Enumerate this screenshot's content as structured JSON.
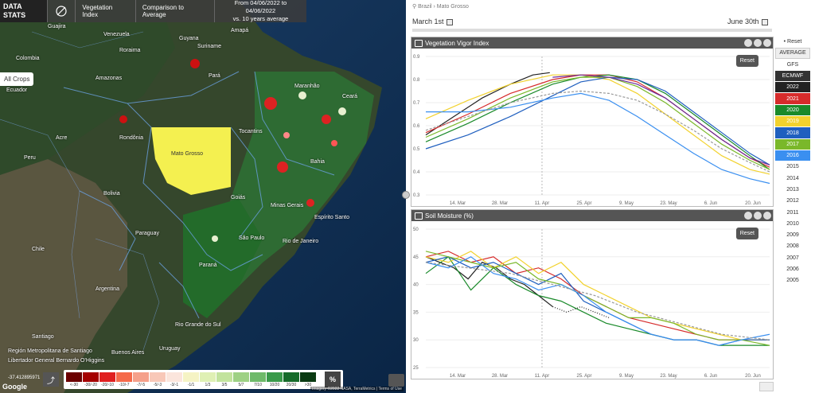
{
  "map": {
    "logo_line1": "DATA",
    "logo_line2": "STATS",
    "layer_button": "Vegetation Index",
    "comparison_button": "Comparison to Average",
    "date_range_line1": "From 04/06/2022 to 04/06/2022",
    "date_range_line2": "vs. 10 years average",
    "crop_selector": "All Crops",
    "labels": [
      {
        "text": "Guajira"
      },
      {
        "text": "Venezuela"
      },
      {
        "text": "Guyana"
      },
      {
        "text": "Suriname"
      },
      {
        "text": "Amapá"
      },
      {
        "text": "Colombia"
      },
      {
        "text": "Roraima"
      },
      {
        "text": "Amazonas"
      },
      {
        "text": "Pará"
      },
      {
        "text": "Ecuador"
      },
      {
        "text": "Maranhão"
      },
      {
        "text": "Ceará"
      },
      {
        "text": "Acre"
      },
      {
        "text": "Rondônia"
      },
      {
        "text": "Tocantins"
      },
      {
        "text": "Peru"
      },
      {
        "text": "Mato Grosso"
      },
      {
        "text": "Bahia"
      },
      {
        "text": "Bolivia"
      },
      {
        "text": "Goiás"
      },
      {
        "text": "Minas Gerais"
      },
      {
        "text": "Espírito Santo"
      },
      {
        "text": "Paraguay"
      },
      {
        "text": "São Paulo"
      },
      {
        "text": "Rio de Janeiro"
      },
      {
        "text": "Chile"
      },
      {
        "text": "Paraná"
      },
      {
        "text": "Argentina"
      },
      {
        "text": "Rio Grande do Sul"
      },
      {
        "text": "Uruguay"
      },
      {
        "text": "Santiago"
      },
      {
        "text": "Buenos Aires"
      },
      {
        "text": "Región Metropolitana de Santiago"
      },
      {
        "text": "Libertador General Bernardo O'Higgins"
      }
    ],
    "legend": [
      {
        "label": "<-30",
        "color": "#6b0000"
      },
      {
        "label": "-30/-20",
        "color": "#a50000"
      },
      {
        "label": "-20/-10",
        "color": "#e02020"
      },
      {
        "label": "-10/-7",
        "color": "#f56a4a"
      },
      {
        "label": "-7/-5",
        "color": "#f5a08a"
      },
      {
        "label": "-5/-3",
        "color": "#f8c8b8"
      },
      {
        "label": "-3/-1",
        "color": "#fbe5dc"
      },
      {
        "label": "-1/1",
        "color": "#f5f3c4"
      },
      {
        "label": "1/3",
        "color": "#dff0b4"
      },
      {
        "label": "3/5",
        "color": "#c2e39d"
      },
      {
        "label": "5/7",
        "color": "#9ed184"
      },
      {
        "label": "7/10",
        "color": "#6fba6a"
      },
      {
        "label": "10/20",
        "color": "#3a9a4a"
      },
      {
        "label": "20/30",
        "color": "#166b2a"
      },
      {
        "label": ">30",
        "color": "#0a3a12"
      }
    ],
    "legend_unit": "%",
    "coordinates": "-37.412895971",
    "google_logo": "Google",
    "attribution": "Imagery ©2022 NASA, TerraMetrics  |  Terms of Use"
  },
  "right": {
    "breadcrumb": "Brazil › Mato Grosso",
    "date_start": "March 1st",
    "date_end": "June 30th"
  },
  "chart_vigor": {
    "title": "Vegetation Vigor Index",
    "reset": "Reset"
  },
  "chart_soil": {
    "title": "Soil Moisture (%)",
    "reset": "Reset"
  },
  "years": {
    "reset": "• Reset",
    "items": [
      {
        "label": "AVERAGE",
        "kind": "avg"
      },
      {
        "label": "GFS",
        "kind": "plain"
      },
      {
        "label": "ECMWF",
        "kind": "active",
        "color": "#333333"
      },
      {
        "label": "2022",
        "kind": "active",
        "color": "#222222"
      },
      {
        "label": "2021",
        "kind": "active",
        "color": "#d62b2b"
      },
      {
        "label": "2020",
        "kind": "active",
        "color": "#1a8a2a"
      },
      {
        "label": "2019",
        "kind": "active",
        "color": "#f2d22e"
      },
      {
        "label": "2018",
        "kind": "active",
        "color": "#1f5fbf"
      },
      {
        "label": "2017",
        "kind": "active",
        "color": "#7ab82a"
      },
      {
        "label": "2016",
        "kind": "active",
        "color": "#3a8ff0"
      },
      {
        "label": "2015",
        "kind": "plain"
      },
      {
        "label": "2014",
        "kind": "plain"
      },
      {
        "label": "2013",
        "kind": "plain"
      },
      {
        "label": "2012",
        "kind": "plain"
      },
      {
        "label": "2011",
        "kind": "plain"
      },
      {
        "label": "2010",
        "kind": "plain"
      },
      {
        "label": "2009",
        "kind": "plain"
      },
      {
        "label": "2008",
        "kind": "plain"
      },
      {
        "label": "2007",
        "kind": "plain"
      },
      {
        "label": "2006",
        "kind": "plain"
      },
      {
        "label": "2005",
        "kind": "plain"
      }
    ]
  },
  "chart_data": [
    {
      "type": "line",
      "title": "Vegetation Vigor Index",
      "x_ticks": [
        "14. Mar",
        "28. Mar",
        "11. Apr",
        "25. Apr",
        "9. May",
        "23. May",
        "6. Jun",
        "20. Jun"
      ],
      "y_ticks": [
        0.9,
        0.8,
        0.7,
        0.6,
        0.5,
        0.4,
        0.3
      ],
      "ylim": [
        0.3,
        0.9
      ],
      "x_days": [
        0,
        122
      ],
      "series": [
        {
          "name": "2022",
          "color": "#222222",
          "x": [
            0,
            10,
            20,
            30,
            38,
            44
          ],
          "y": [
            0.56,
            0.64,
            0.72,
            0.78,
            0.82,
            0.83
          ]
        },
        {
          "name": "2021",
          "color": "#d62b2b",
          "x": [
            0,
            15,
            30,
            45,
            55,
            65,
            75,
            85,
            95,
            105,
            115,
            122
          ],
          "y": [
            0.57,
            0.65,
            0.74,
            0.8,
            0.82,
            0.82,
            0.79,
            0.72,
            0.63,
            0.54,
            0.46,
            0.42
          ]
        },
        {
          "name": "2020",
          "color": "#1a8a2a",
          "x": [
            0,
            15,
            30,
            45,
            55,
            65,
            75,
            85,
            95,
            105,
            115,
            122
          ],
          "y": [
            0.53,
            0.61,
            0.7,
            0.78,
            0.81,
            0.82,
            0.8,
            0.74,
            0.65,
            0.56,
            0.47,
            0.41
          ]
        },
        {
          "name": "2019",
          "color": "#f2d22e",
          "x": [
            0,
            15,
            30,
            45,
            55,
            65,
            75,
            85,
            95,
            105,
            115,
            122
          ],
          "y": [
            0.63,
            0.71,
            0.78,
            0.82,
            0.82,
            0.8,
            0.74,
            0.65,
            0.56,
            0.47,
            0.41,
            0.39
          ]
        },
        {
          "name": "2018",
          "color": "#1f5fbf",
          "x": [
            0,
            15,
            30,
            45,
            55,
            65,
            75,
            85,
            95,
            105,
            115,
            122
          ],
          "y": [
            0.5,
            0.56,
            0.64,
            0.73,
            0.79,
            0.81,
            0.8,
            0.75,
            0.66,
            0.57,
            0.48,
            0.43
          ]
        },
        {
          "name": "2017",
          "color": "#7ab82a",
          "x": [
            0,
            15,
            30,
            45,
            55,
            65,
            75,
            85,
            95,
            105,
            115,
            122
          ],
          "y": [
            0.55,
            0.63,
            0.72,
            0.79,
            0.81,
            0.81,
            0.77,
            0.7,
            0.61,
            0.52,
            0.45,
            0.41
          ]
        },
        {
          "name": "2016",
          "color": "#3a8ff0",
          "x": [
            0,
            15,
            30,
            45,
            55,
            65,
            75,
            85,
            95,
            105,
            115,
            122
          ],
          "y": [
            0.66,
            0.66,
            0.68,
            0.72,
            0.74,
            0.71,
            0.64,
            0.56,
            0.48,
            0.41,
            0.37,
            0.35
          ]
        },
        {
          "name": "AVERAGE",
          "color": "#999999",
          "dashed": true,
          "x": [
            0,
            15,
            30,
            45,
            55,
            65,
            75,
            85,
            95,
            105,
            115,
            122
          ],
          "y": [
            0.58,
            0.64,
            0.7,
            0.74,
            0.75,
            0.74,
            0.71,
            0.65,
            0.58,
            0.5,
            0.44,
            0.4
          ]
        },
        {
          "name": "2022 purple",
          "color": "#6a2a9a",
          "x": [
            45,
            55,
            65,
            75,
            85,
            95,
            105,
            115,
            122
          ],
          "y": [
            0.81,
            0.82,
            0.81,
            0.78,
            0.72,
            0.63,
            0.54,
            0.46,
            0.43
          ]
        }
      ]
    },
    {
      "type": "line",
      "title": "Soil Moisture (%)",
      "x_ticks": [
        "14. Mar",
        "28. Mar",
        "11. Apr",
        "25. Apr",
        "9. May",
        "23. May",
        "6. Jun",
        "20. Jun"
      ],
      "y_ticks": [
        50,
        45,
        40,
        35,
        30,
        25
      ],
      "ylim": [
        25,
        50
      ],
      "x_days": [
        0,
        122
      ],
      "series": [
        {
          "name": "2022",
          "color": "#222222",
          "x": [
            0,
            5,
            10,
            15,
            20,
            25,
            30,
            35,
            40,
            45
          ],
          "y": [
            45,
            44,
            43,
            41,
            44,
            43,
            41,
            40,
            38,
            36
          ]
        },
        {
          "name": "2021",
          "color": "#d62b2b",
          "x": [
            0,
            8,
            16,
            24,
            32,
            40,
            48,
            56,
            64,
            72,
            80,
            88,
            96,
            104,
            112,
            122
          ],
          "y": [
            45,
            46,
            44,
            45,
            42,
            43,
            41,
            38,
            36,
            34,
            33,
            32,
            31,
            30,
            30,
            30
          ]
        },
        {
          "name": "2020",
          "color": "#1a8a2a",
          "x": [
            0,
            8,
            16,
            24,
            32,
            40,
            48,
            56,
            64,
            72,
            80,
            88,
            96,
            104,
            112,
            122
          ],
          "y": [
            42,
            45,
            39,
            43,
            40,
            38,
            37,
            35,
            33,
            32,
            31,
            30,
            30,
            29,
            29,
            29
          ]
        },
        {
          "name": "2019",
          "color": "#f2d22e",
          "x": [
            0,
            8,
            16,
            24,
            32,
            40,
            48,
            56,
            64,
            72,
            80,
            88,
            96,
            104,
            112,
            122
          ],
          "y": [
            45,
            44,
            46,
            43,
            45,
            42,
            44,
            40,
            38,
            36,
            34,
            33,
            32,
            31,
            30,
            30
          ]
        },
        {
          "name": "2018",
          "color": "#1f5fbf",
          "x": [
            0,
            8,
            16,
            24,
            32,
            40,
            48,
            56,
            64,
            72,
            80,
            88,
            96,
            104,
            112,
            122
          ],
          "y": [
            44,
            45,
            43,
            44,
            42,
            40,
            42,
            37,
            35,
            33,
            31,
            30,
            30,
            29,
            30,
            30
          ]
        },
        {
          "name": "2017",
          "color": "#7ab82a",
          "x": [
            0,
            8,
            16,
            24,
            32,
            40,
            48,
            56,
            64,
            72,
            80,
            88,
            96,
            104,
            112,
            122
          ],
          "y": [
            46,
            45,
            44,
            43,
            44,
            41,
            40,
            38,
            36,
            34,
            34,
            33,
            31,
            30,
            30,
            29
          ]
        },
        {
          "name": "2016",
          "color": "#3a8ff0",
          "x": [
            0,
            8,
            16,
            24,
            32,
            40,
            48,
            56,
            64,
            72,
            80,
            88,
            96,
            104,
            112,
            122
          ],
          "y": [
            44,
            43,
            45,
            42,
            41,
            39,
            40,
            38,
            35,
            33,
            31,
            30,
            30,
            29,
            30,
            31
          ]
        },
        {
          "name": "AVERAGE",
          "color": "#999999",
          "dashed": true,
          "x": [
            0,
            15,
            30,
            45,
            60,
            75,
            90,
            105,
            122
          ],
          "y": [
            44,
            43,
            42,
            40,
            38,
            35,
            33,
            31,
            30
          ]
        },
        {
          "name": "forecast",
          "color": "#222222",
          "dotted": true,
          "x": [
            45,
            50,
            55,
            60,
            65
          ],
          "y": [
            36,
            35,
            36,
            35,
            34
          ]
        }
      ]
    }
  ]
}
